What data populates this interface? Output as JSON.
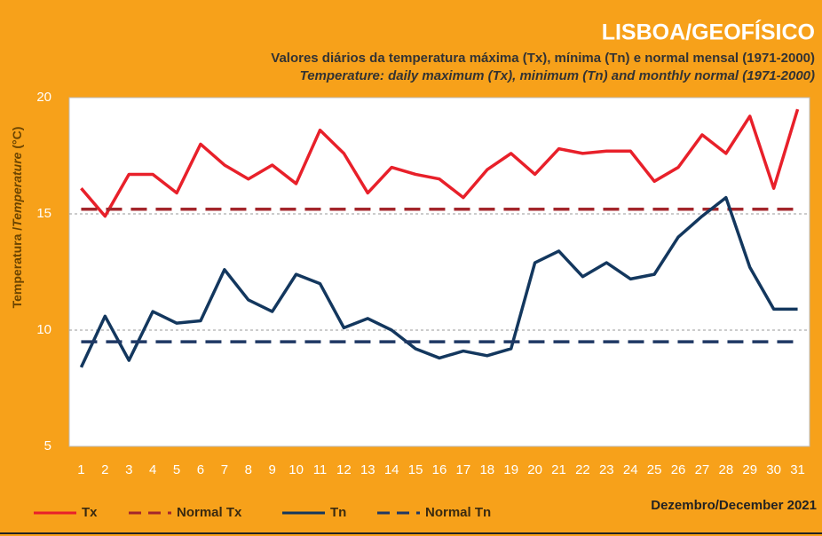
{
  "chart_data": {
    "type": "line",
    "title": "LISBOA/GEOFÍSICO",
    "subtitle": "Valores diários da temperatura máxima (Tx), mínima (Tn) e normal mensal  (1971-2000)",
    "subtitle_en": "Temperature: daily maximum  (Tx), minimum (Tn) and  monthly normal  (1971-2000)",
    "y_label": [
      "Temperatura /",
      "Temperature",
      " (°C)"
    ],
    "footer": "Dezembro/December 2021",
    "categories": [
      "1",
      "2",
      "3",
      "4",
      "5",
      "6",
      "7",
      "8",
      "9",
      "10",
      "11",
      "12",
      "13",
      "14",
      "15",
      "16",
      "17",
      "18",
      "19",
      "20",
      "21",
      "22",
      "23",
      "24",
      "25",
      "26",
      "27",
      "28",
      "29",
      "30",
      "31"
    ],
    "ylim": [
      5,
      20
    ],
    "yticks": [
      5,
      10,
      15,
      20
    ],
    "grid": true,
    "series": [
      {
        "name": "Tx",
        "color": "#e8202a",
        "dashed": false,
        "values": [
          16.1,
          14.9,
          16.7,
          16.7,
          15.9,
          18.0,
          17.1,
          16.5,
          17.1,
          16.3,
          18.6,
          17.6,
          15.9,
          17.0,
          16.7,
          16.5,
          15.7,
          16.9,
          17.6,
          16.7,
          17.8,
          17.6,
          17.7,
          17.7,
          16.4,
          17.0,
          18.4,
          17.6,
          19.2,
          16.1,
          19.5
        ]
      },
      {
        "name": "Normal Tx",
        "color": "#a3262b",
        "dashed": true,
        "value": 15.2
      },
      {
        "name": "Tn",
        "color": "#13375e",
        "dashed": false,
        "values": [
          8.4,
          10.6,
          8.7,
          10.8,
          10.3,
          10.4,
          12.6,
          11.3,
          10.8,
          12.4,
          12.0,
          10.1,
          10.5,
          10.0,
          9.2,
          8.8,
          9.1,
          8.9,
          9.2,
          12.9,
          13.4,
          12.3,
          12.9,
          12.2,
          12.4,
          14.0,
          14.9,
          15.7,
          12.7,
          10.9,
          10.9
        ]
      },
      {
        "name": "Normal Tn",
        "color": "#1f3864",
        "dashed": true,
        "value": 9.5
      }
    ]
  }
}
